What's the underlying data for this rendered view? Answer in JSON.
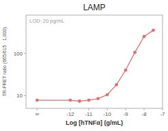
{
  "chart_data": {
    "type": "line",
    "title": "LAMP",
    "x_label": "Log [hTNFα] (g/mL)",
    "y_label": "TR-FRET ratio (665/615 · 1,000)",
    "annotation": "LOD: 20 pg/mL",
    "x": [
      -13.8,
      -12,
      -11.5,
      -11,
      -10.5,
      -10,
      -9.5,
      -9,
      -8.5,
      -8,
      -7.5
    ],
    "values": [
      7.8,
      7.8,
      7.4,
      7.8,
      8.5,
      10.5,
      18,
      40,
      105,
      250,
      350
    ],
    "color": "#e07070",
    "marker": "circle",
    "log": "y",
    "xlim": [
      -14.4,
      -7.0
    ],
    "ylim": [
      5,
      800
    ],
    "xticks": [
      {
        "value": -13.8,
        "label": "∞"
      },
      -12,
      -11,
      -10,
      -9,
      -8,
      -7
    ],
    "yticks": [
      10,
      100
    ],
    "grid": false
  }
}
